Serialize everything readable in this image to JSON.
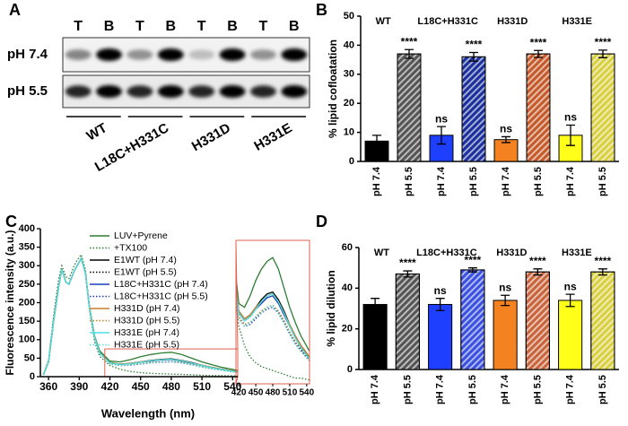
{
  "panel_labels": [
    "A",
    "B",
    "C",
    "D"
  ],
  "blot": {
    "lanes": [
      "T",
      "B",
      "T",
      "B",
      "T",
      "B",
      "T",
      "B"
    ],
    "rows": [
      "pH 7.4",
      "pH 5.5"
    ],
    "groups": [
      "WT",
      "L18C+H331C",
      "H331D",
      "H331E"
    ]
  },
  "chart_data": [
    {
      "type": "bar",
      "ylabel": "% lipid cofloatation",
      "categories": [
        "pH 7.4",
        "pH 5.5",
        "pH 7.4",
        "pH 5.5",
        "pH 7.4",
        "pH 5.5",
        "pH 7.4",
        "pH 5.5"
      ],
      "values": [
        7,
        37,
        9,
        36,
        7.5,
        37,
        9,
        37
      ],
      "errors": [
        2,
        1.5,
        3,
        1.5,
        1,
        1.2,
        3.5,
        1.3
      ],
      "colors": [
        "#000000",
        "#555555",
        "#1f3fff",
        "#1a2f9a",
        "#f58220",
        "#c45a2a",
        "#ffff1a",
        "#d8d040"
      ],
      "hatched": [
        false,
        true,
        false,
        true,
        false,
        true,
        false,
        true
      ],
      "bar_labels": [
        null,
        "****",
        "ns",
        "****",
        "ns",
        "****",
        "ns",
        "****"
      ],
      "groups": [
        "WT",
        "L18C+H331C",
        "H331D",
        "H331E"
      ],
      "ylim": [
        0,
        50
      ],
      "yticks": [
        0,
        10,
        20,
        30,
        40,
        50
      ]
    },
    {
      "type": "line",
      "xlabel": "Wavelength (nm)",
      "ylabel": "Fluorescence intensity (a.u.)",
      "x": [
        355,
        360,
        365,
        370,
        373,
        377,
        380,
        385,
        388,
        392,
        396,
        400,
        405,
        410,
        420,
        430,
        440,
        450,
        460,
        470,
        480,
        490,
        500,
        510,
        520,
        530,
        545
      ],
      "series": [
        {
          "name": "LUV+Pyrene",
          "color": "#2e7d32",
          "style": "solid",
          "values": [
            5,
            40,
            150,
            245,
            290,
            255,
            250,
            285,
            300,
            320,
            280,
            190,
            110,
            70,
            42,
            40,
            46,
            54,
            60,
            64,
            66,
            60,
            50,
            40,
            32,
            25,
            17
          ]
        },
        {
          "name": "+TX100",
          "color": "#2e7d32",
          "style": "dotted",
          "values": [
            6,
            45,
            165,
            265,
            300,
            270,
            265,
            300,
            315,
            330,
            290,
            180,
            95,
            55,
            30,
            20,
            14,
            11,
            9,
            8,
            7,
            6,
            5,
            4,
            3,
            3,
            2
          ]
        },
        {
          "name": "E1WT (pH 7.4)",
          "color": "#000000",
          "style": "solid",
          "values": [
            5,
            40,
            150,
            245,
            290,
            255,
            250,
            285,
            300,
            320,
            280,
            188,
            108,
            66,
            38,
            34,
            36,
            40,
            44,
            47,
            48,
            44,
            38,
            31,
            25,
            20,
            14
          ]
        },
        {
          "name": "E1WT (pH 5.5)",
          "color": "#000000",
          "style": "dotted",
          "values": [
            5,
            40,
            150,
            245,
            290,
            255,
            250,
            285,
            300,
            320,
            280,
            186,
            105,
            63,
            35,
            31,
            32,
            35,
            38,
            40,
            41,
            38,
            33,
            27,
            22,
            18,
            12
          ]
        },
        {
          "name": "L18C+H331C (pH 7.4)",
          "color": "#1f3fbf",
          "style": "solid",
          "values": [
            5,
            40,
            150,
            245,
            290,
            255,
            250,
            285,
            300,
            320,
            280,
            187,
            107,
            65,
            37,
            33,
            35,
            39,
            42,
            45,
            46,
            42,
            36,
            30,
            24,
            19,
            13
          ]
        },
        {
          "name": "L18C+H331C (pH 5.5)",
          "color": "#1f3fbf",
          "style": "dotted",
          "values": [
            5,
            40,
            150,
            245,
            290,
            255,
            250,
            285,
            300,
            320,
            280,
            185,
            104,
            62,
            34,
            30,
            31,
            34,
            37,
            39,
            40,
            37,
            32,
            26,
            21,
            17,
            12
          ]
        },
        {
          "name": "H331D (pH 7.4)",
          "color": "#c87f2a",
          "style": "solid",
          "values": [
            5,
            40,
            150,
            245,
            290,
            255,
            250,
            285,
            300,
            320,
            280,
            188,
            108,
            66,
            38,
            34,
            36,
            40,
            43,
            46,
            47,
            43,
            37,
            31,
            25,
            20,
            14
          ]
        },
        {
          "name": "H331D (pH 5.5)",
          "color": "#c87f2a",
          "style": "dotted",
          "values": [
            5,
            40,
            150,
            245,
            290,
            255,
            250,
            285,
            300,
            320,
            280,
            186,
            105,
            63,
            35,
            31,
            32,
            35,
            38,
            40,
            41,
            38,
            33,
            27,
            22,
            17,
            12
          ]
        },
        {
          "name": "H331E (pH 7.4)",
          "color": "#4ee0e0",
          "style": "solid",
          "values": [
            5,
            40,
            150,
            245,
            290,
            255,
            250,
            285,
            300,
            320,
            280,
            187,
            107,
            65,
            37,
            33,
            35,
            39,
            43,
            46,
            47,
            43,
            37,
            30,
            24,
            19,
            13
          ]
        },
        {
          "name": "H331E (pH 5.5)",
          "color": "#4ee0e0",
          "style": "dotted",
          "values": [
            5,
            40,
            150,
            245,
            290,
            255,
            250,
            285,
            300,
            320,
            280,
            185,
            104,
            62,
            34,
            30,
            32,
            35,
            37,
            40,
            41,
            37,
            32,
            26,
            21,
            17,
            12
          ]
        }
      ],
      "xlim": [
        352,
        545
      ],
      "xticks": [
        360,
        390,
        420,
        450,
        480,
        510,
        540
      ],
      "ylim": [
        0,
        400
      ],
      "yticks": [
        0,
        50,
        100,
        150,
        200,
        250,
        300,
        350,
        400
      ],
      "inset_xlim": [
        415,
        545
      ],
      "inset_ylim": [
        0,
        75
      ],
      "inset_xticks": [
        420,
        450,
        480,
        510,
        540
      ]
    },
    {
      "type": "bar",
      "ylabel": "% lipid dilution",
      "categories": [
        "pH 7.4",
        "pH 5.5",
        "pH 7.4",
        "pH 5.5",
        "pH 7.4",
        "pH 5.5",
        "pH 7.4",
        "pH 5.5"
      ],
      "values": [
        32,
        47,
        32,
        49,
        34,
        48,
        34,
        48
      ],
      "errors": [
        3,
        1.5,
        3,
        1,
        2.5,
        1.5,
        3,
        1.5
      ],
      "colors": [
        "#000000",
        "#555555",
        "#1f3fff",
        "#3a50e0",
        "#f58220",
        "#c8643c",
        "#ffff1a",
        "#d8d040"
      ],
      "hatched": [
        false,
        true,
        false,
        true,
        false,
        true,
        false,
        true
      ],
      "bar_labels": [
        null,
        "****",
        "ns",
        "****",
        "ns",
        "****",
        "ns",
        "****"
      ],
      "groups": [
        "WT",
        "L18C+H331C",
        "H331D",
        "H331E"
      ],
      "ylim": [
        0,
        60
      ],
      "yticks": [
        0,
        20,
        40,
        60
      ]
    }
  ]
}
